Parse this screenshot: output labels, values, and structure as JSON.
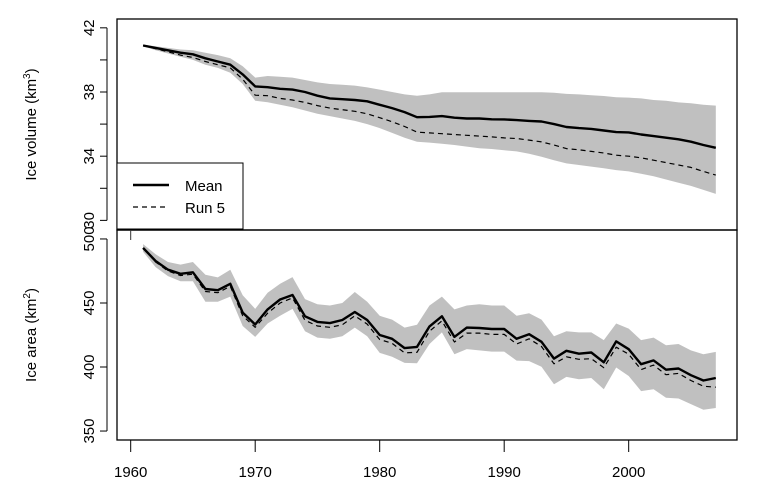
{
  "chart_data": [
    {
      "type": "line",
      "panel": "top",
      "title": "",
      "xlabel": "",
      "ylabel": "Ice volume (km^3)",
      "ylabel_parts": {
        "main": "Ice volume (km",
        "sup": "3",
        "end": ")"
      },
      "xlim": [
        1958.9,
        2008.7
      ],
      "ylim": [
        29.4,
        42.55
      ],
      "yticks": [
        30,
        32,
        34,
        36,
        38,
        40,
        42
      ],
      "ytick_labels": [
        "30",
        "34",
        "38",
        "42"
      ],
      "ytick_label_values": [
        30,
        34,
        38,
        42
      ],
      "xticks": [
        1960,
        1970,
        1980,
        1990,
        2000
      ],
      "grid": false,
      "legend": {
        "placement": "bottom-left",
        "entries": [
          {
            "label": "Mean",
            "style": "solid"
          },
          {
            "label": "Run 5",
            "style": "dashed"
          }
        ]
      },
      "x": [
        1961,
        1962,
        1963,
        1964,
        1965,
        1966,
        1967,
        1968,
        1969,
        1970,
        1971,
        1972,
        1973,
        1974,
        1975,
        1976,
        1977,
        1978,
        1979,
        1980,
        1981,
        1982,
        1983,
        1984,
        1985,
        1986,
        1987,
        1988,
        1989,
        1990,
        1991,
        1992,
        1993,
        1994,
        1995,
        1996,
        1997,
        1998,
        1999,
        2000,
        2001,
        2002,
        2003,
        2004,
        2005,
        2006,
        2007
      ],
      "series": [
        {
          "name": "Mean",
          "style": "solid",
          "values": [
            40.9,
            40.75,
            40.6,
            40.45,
            40.35,
            40.1,
            39.9,
            39.7,
            39.1,
            38.35,
            38.3,
            38.2,
            38.15,
            38.0,
            37.77,
            37.6,
            37.55,
            37.5,
            37.42,
            37.2,
            37.0,
            36.75,
            36.43,
            36.45,
            36.5,
            36.4,
            36.35,
            36.35,
            36.3,
            36.29,
            36.25,
            36.2,
            36.16,
            36.0,
            35.82,
            35.75,
            35.7,
            35.6,
            35.5,
            35.48,
            35.35,
            35.25,
            35.15,
            35.05,
            34.9,
            34.7,
            34.52
          ]
        },
        {
          "name": "Run 5",
          "style": "dashed",
          "values": [
            40.9,
            40.7,
            40.5,
            40.3,
            40.15,
            39.9,
            39.7,
            39.5,
            38.8,
            37.8,
            37.77,
            37.6,
            37.5,
            37.35,
            37.15,
            37.0,
            36.9,
            36.8,
            36.64,
            36.4,
            36.15,
            35.85,
            35.5,
            35.45,
            35.4,
            35.35,
            35.3,
            35.25,
            35.2,
            35.14,
            35.1,
            35.0,
            34.89,
            34.7,
            34.47,
            34.4,
            34.3,
            34.2,
            34.06,
            34.0,
            33.9,
            33.75,
            33.6,
            33.45,
            33.3,
            33.05,
            32.82
          ]
        },
        {
          "name": "Band upper",
          "style": "fill",
          "values": [
            40.95,
            40.85,
            40.75,
            40.65,
            40.6,
            40.45,
            40.3,
            40.1,
            39.6,
            38.9,
            39.0,
            38.95,
            38.9,
            38.75,
            38.6,
            38.5,
            38.45,
            38.4,
            38.29,
            38.15,
            38.0,
            37.85,
            37.77,
            37.85,
            37.98,
            37.98,
            37.98,
            37.98,
            37.98,
            37.98,
            37.98,
            37.98,
            37.98,
            37.95,
            37.88,
            37.85,
            37.8,
            37.75,
            37.67,
            37.65,
            37.6,
            37.5,
            37.45,
            37.35,
            37.3,
            37.2,
            37.15
          ]
        },
        {
          "name": "Band lower",
          "style": "fill",
          "values": [
            40.85,
            40.6,
            40.4,
            40.2,
            40.0,
            39.7,
            39.5,
            39.2,
            38.5,
            37.46,
            37.36,
            37.2,
            37.05,
            36.85,
            36.64,
            36.5,
            36.35,
            36.2,
            36.0,
            35.75,
            35.45,
            35.15,
            34.9,
            34.85,
            34.78,
            34.7,
            34.6,
            34.5,
            34.45,
            34.37,
            34.3,
            34.15,
            33.96,
            33.75,
            33.55,
            33.45,
            33.35,
            33.25,
            33.13,
            33.05,
            32.9,
            32.75,
            32.55,
            32.35,
            32.15,
            31.9,
            31.65
          ]
        }
      ]
    },
    {
      "type": "line",
      "panel": "bottom",
      "title": "",
      "xlabel": "",
      "ylabel": "Ice area (km^2)",
      "ylabel_parts": {
        "main": "Ice area (km",
        "sup": "2",
        "end": ")"
      },
      "xlim": [
        1958.9,
        2008.7
      ],
      "ylim": [
        343,
        507
      ],
      "yticks": [
        350,
        400,
        450,
        500
      ],
      "ytick_labels": [
        "350",
        "400",
        "450",
        "500"
      ],
      "ytick_label_values": [
        350,
        400,
        450,
        500
      ],
      "xticks": [
        1960,
        1970,
        1980,
        1990,
        2000
      ],
      "xtick_labels": [
        "1960",
        "1970",
        "1980",
        "1990",
        "2000"
      ],
      "grid": false,
      "x": [
        1961,
        1962,
        1963,
        1964,
        1965,
        1966,
        1967,
        1968,
        1969,
        1970,
        1971,
        1972,
        1973,
        1974,
        1975,
        1976,
        1977,
        1978,
        1979,
        1980,
        1981,
        1982,
        1983,
        1984,
        1985,
        1986,
        1987,
        1988,
        1989,
        1990,
        1991,
        1992,
        1993,
        1994,
        1995,
        1996,
        1997,
        1998,
        1999,
        2000,
        2001,
        2002,
        2003,
        2004,
        2005,
        2006,
        2007
      ],
      "series": [
        {
          "name": "Mean",
          "style": "solid",
          "values": [
            493,
            482.8,
            476,
            472.8,
            474,
            460.9,
            460,
            465,
            442.5,
            433.2,
            445,
            452.7,
            456.2,
            439.6,
            435.2,
            434.3,
            436.7,
            443,
            436.7,
            425,
            422,
            414.8,
            415.7,
            431.7,
            439.6,
            423.5,
            430.8,
            430.5,
            429.7,
            429.7,
            422,
            425.6,
            419.7,
            406.6,
            412.7,
            410.4,
            411.3,
            403.7,
            420,
            413.9,
            402.2,
            405.2,
            397.9,
            398.8,
            393.6,
            389.5,
            391.4
          ]
        },
        {
          "name": "Run 5",
          "style": "dashed",
          "values": [
            493,
            482,
            475,
            471.5,
            472.5,
            459,
            458,
            463,
            440,
            431,
            442,
            450,
            454,
            436.5,
            432,
            431,
            433,
            440,
            433.5,
            421.5,
            418.5,
            411,
            411.5,
            428,
            436,
            419.5,
            426.5,
            426.5,
            425.5,
            425.5,
            418,
            422,
            416,
            402.5,
            408,
            406,
            406.5,
            399.5,
            415.5,
            410,
            398,
            401.5,
            394,
            395,
            389.5,
            385,
            384.2
          ]
        },
        {
          "name": "Band upper",
          "style": "fill",
          "values": [
            496,
            488,
            482,
            480,
            482,
            472,
            470,
            476,
            456,
            445.4,
            458,
            465,
            470.2,
            453,
            449,
            448,
            450,
            458.6,
            451,
            440,
            437,
            430.8,
            433,
            448,
            455,
            445,
            448,
            449,
            448,
            448,
            440,
            442,
            437,
            424,
            428,
            427,
            427,
            421,
            434,
            430,
            421,
            423,
            417,
            418,
            413,
            410,
            411.8
          ]
        },
        {
          "name": "Band lower",
          "style": "fill",
          "values": [
            490,
            478,
            471,
            467,
            467,
            451,
            451,
            455,
            432,
            423.5,
            434,
            440,
            445.4,
            428,
            423,
            422,
            424,
            430.8,
            424,
            411,
            408,
            403.2,
            403,
            418,
            427,
            410,
            414,
            413,
            412,
            412,
            405,
            404.6,
            400.2,
            386.5,
            392.3,
            390.5,
            391.4,
            382.7,
            399.6,
            393,
            381.2,
            382.7,
            376,
            375.4,
            371,
            366.6,
            368
          ]
        }
      ]
    }
  ],
  "colors": {
    "band": "#c0c0c0",
    "line": "#000000",
    "axis": "#000000",
    "background": "#ffffff"
  }
}
